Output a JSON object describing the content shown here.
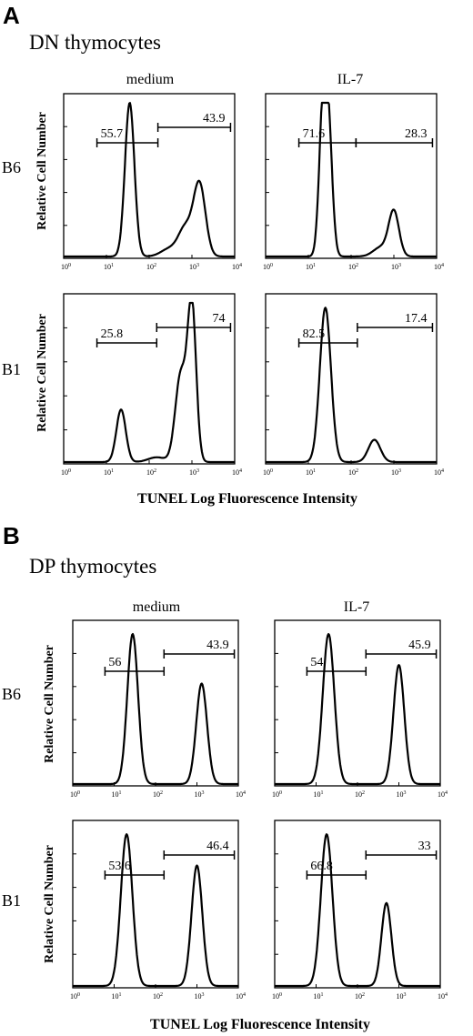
{
  "panels": [
    {
      "letter": "A",
      "title": "DN thymocytes",
      "columns": [
        "medium",
        "IL-7"
      ],
      "rows": [
        "B6",
        "B1"
      ],
      "ylabel": "Relative Cell Number",
      "xlabel": "TUNEL Log Fluorescence Intensity"
    },
    {
      "letter": "B",
      "title": "DP thymocytes",
      "columns": [
        "medium",
        "IL-7"
      ],
      "rows": [
        "B6",
        "B1"
      ],
      "ylabel": "Relative Cell Number",
      "xlabel": "TUNEL Log Fluorescence Intensity"
    }
  ],
  "chart_data": [
    {
      "type": "histogram",
      "panel": "A",
      "row": "B6",
      "column": "medium",
      "x_scale": "log",
      "xlim": [
        1,
        10000
      ],
      "gates": [
        {
          "value": "55.7",
          "from": 6,
          "to": 160
        },
        {
          "value": "43.9",
          "from": 160,
          "to": 8000
        }
      ],
      "peaks": [
        {
          "x": 35,
          "height": 1.0,
          "width": 0.11
        },
        {
          "x": 1500,
          "height": 0.47,
          "width": 0.14
        },
        {
          "x": 700,
          "height": 0.18,
          "width": 0.16
        },
        {
          "x": 300,
          "height": 0.05,
          "width": 0.2
        }
      ]
    },
    {
      "type": "histogram",
      "panel": "A",
      "row": "B6",
      "column": "IL-7",
      "x_scale": "log",
      "xlim": [
        1,
        10000
      ],
      "gates": [
        {
          "value": "71.6",
          "from": 6,
          "to": 130
        },
        {
          "value": "28.3",
          "from": 130,
          "to": 8000
        }
      ],
      "peaks": [
        {
          "x": 22,
          "height": 0.93,
          "width": 0.09
        },
        {
          "x": 30,
          "height": 0.72,
          "width": 0.09
        },
        {
          "x": 1000,
          "height": 0.29,
          "width": 0.12
        },
        {
          "x": 500,
          "height": 0.06,
          "width": 0.18
        }
      ]
    },
    {
      "type": "histogram",
      "panel": "A",
      "row": "B1",
      "column": "medium",
      "x_scale": "log",
      "xlim": [
        1,
        10000
      ],
      "gates": [
        {
          "value": "25.8",
          "from": 6,
          "to": 150
        },
        {
          "value": "74",
          "from": 150,
          "to": 8000
        }
      ],
      "peaks": [
        {
          "x": 22,
          "height": 0.33,
          "width": 0.11
        },
        {
          "x": 1000,
          "height": 0.97,
          "width": 0.1
        },
        {
          "x": 550,
          "height": 0.55,
          "width": 0.13
        },
        {
          "x": 150,
          "height": 0.03,
          "width": 0.2
        }
      ]
    },
    {
      "type": "histogram",
      "panel": "A",
      "row": "B1",
      "column": "IL-7",
      "x_scale": "log",
      "xlim": [
        1,
        10000
      ],
      "gates": [
        {
          "value": "82.5",
          "from": 6,
          "to": 140
        },
        {
          "value": "17.4",
          "from": 140,
          "to": 8000
        }
      ],
      "peaks": [
        {
          "x": 25,
          "height": 0.97,
          "width": 0.13
        },
        {
          "x": 350,
          "height": 0.14,
          "width": 0.14
        }
      ]
    },
    {
      "type": "histogram",
      "panel": "B",
      "row": "B6",
      "column": "medium",
      "x_scale": "log",
      "xlim": [
        1,
        10000
      ],
      "gates": [
        {
          "value": "56",
          "from": 6,
          "to": 160
        },
        {
          "value": "43.9",
          "from": 160,
          "to": 8000
        }
      ],
      "peaks": [
        {
          "x": 28,
          "height": 0.97,
          "width": 0.13
        },
        {
          "x": 1300,
          "height": 0.65,
          "width": 0.13
        }
      ]
    },
    {
      "type": "histogram",
      "panel": "B",
      "row": "B6",
      "column": "IL-7",
      "x_scale": "log",
      "xlim": [
        1,
        10000
      ],
      "gates": [
        {
          "value": "54",
          "from": 6,
          "to": 160
        },
        {
          "value": "45.9",
          "from": 160,
          "to": 8000
        }
      ],
      "peaks": [
        {
          "x": 20,
          "height": 0.97,
          "width": 0.14
        },
        {
          "x": 1000,
          "height": 0.77,
          "width": 0.13
        }
      ]
    },
    {
      "type": "histogram",
      "panel": "B",
      "row": "B1",
      "column": "medium",
      "x_scale": "log",
      "xlim": [
        1,
        10000
      ],
      "gates": [
        {
          "value": "53.6",
          "from": 6,
          "to": 160
        },
        {
          "value": "46.4",
          "from": 160,
          "to": 8000
        }
      ],
      "peaks": [
        {
          "x": 20,
          "height": 0.97,
          "width": 0.14
        },
        {
          "x": 1000,
          "height": 0.77,
          "width": 0.13
        }
      ]
    },
    {
      "type": "histogram",
      "panel": "B",
      "row": "B1",
      "column": "IL-7",
      "x_scale": "log",
      "xlim": [
        1,
        10000
      ],
      "gates": [
        {
          "value": "66.8",
          "from": 6,
          "to": 160
        },
        {
          "value": "33",
          "from": 160,
          "to": 8000
        }
      ],
      "peaks": [
        {
          "x": 18,
          "height": 0.97,
          "width": 0.14
        },
        {
          "x": 500,
          "height": 0.53,
          "width": 0.12
        }
      ]
    }
  ]
}
